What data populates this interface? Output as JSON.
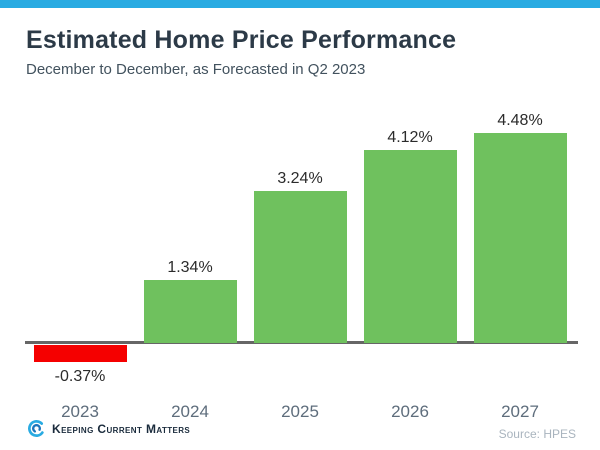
{
  "page": {
    "title": "Estimated Home Price Performance",
    "subtitle": "December to December, as Forecasted in Q2 2023",
    "brand": "Keeping Current Matters",
    "source": "Source: HPES"
  },
  "colors": {
    "top_bar": "#29ABE2",
    "positive_bar": "#6FC15E",
    "negative_bar": "#F50000",
    "axis": "#666666",
    "logo_outer": "#29ABE2",
    "logo_inner": "#1B75BC"
  },
  "chart_data": {
    "type": "bar",
    "title": "Estimated Home Price Performance",
    "subtitle": "December to December, as Forecasted in Q2 2023",
    "categories": [
      "2023",
      "2024",
      "2025",
      "2026",
      "2027"
    ],
    "values": [
      -0.37,
      1.34,
      3.24,
      4.12,
      4.48
    ],
    "value_labels": [
      "-0.37%",
      "1.34%",
      "3.24%",
      "4.12%",
      "4.48%"
    ],
    "bar_colors": [
      "#F50000",
      "#6FC15E",
      "#6FC15E",
      "#6FC15E",
      "#6FC15E"
    ],
    "xlabel": "",
    "ylabel": "",
    "ylim": [
      -1,
      5
    ],
    "grid": false,
    "legend": false,
    "annotations": "value labels above positive bars, below negative bar",
    "source": "Source: HPES"
  }
}
